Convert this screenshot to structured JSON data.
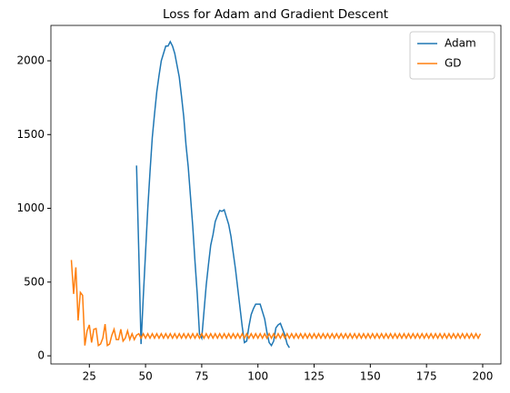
{
  "chart_data": {
    "type": "line",
    "title": "Loss for Adam and Gradient Descent",
    "xlim": [
      7.9,
      208.1
    ],
    "xticks": [
      25,
      50,
      75,
      100,
      125,
      150,
      175,
      200
    ],
    "ylim": [
      -55,
      2240
    ],
    "yticks": [
      0,
      500,
      1000,
      1500,
      2000
    ],
    "legend": "upper right",
    "series": [
      {
        "name": "Adam",
        "color": "#1f77b4",
        "x": [
          46,
          47,
          48,
          49,
          50,
          51,
          52,
          53,
          54,
          55,
          56,
          57,
          58,
          59,
          60,
          61,
          62,
          63,
          64,
          65,
          66,
          67,
          68,
          69,
          70,
          71,
          72,
          73,
          74,
          75,
          76,
          77,
          78,
          79,
          80,
          81,
          82,
          83,
          84,
          85,
          86,
          87,
          88,
          89,
          90,
          91,
          92,
          93,
          94,
          95,
          96,
          97,
          98,
          99,
          100,
          101,
          102,
          103,
          104,
          105,
          106,
          107,
          108,
          109,
          110,
          111,
          112,
          113,
          114
        ],
        "values": [
          1290,
          700,
          80,
          400,
          700,
          1000,
          1250,
          1480,
          1640,
          1790,
          1900,
          2000,
          2050,
          2100,
          2100,
          2130,
          2100,
          2050,
          1970,
          1890,
          1760,
          1620,
          1430,
          1280,
          1080,
          880,
          640,
          420,
          150,
          120,
          300,
          480,
          620,
          750,
          820,
          910,
          950,
          985,
          980,
          990,
          940,
          890,
          810,
          700,
          590,
          460,
          330,
          200,
          90,
          100,
          200,
          280,
          320,
          350,
          350,
          350,
          300,
          250,
          160,
          90,
          70,
          100,
          190,
          210,
          220,
          180,
          140,
          80,
          55
        ]
      },
      {
        "name": "GD",
        "color": "#ff7f0e",
        "x": [
          17,
          18,
          19,
          20,
          21,
          22,
          23,
          24,
          25,
          26,
          27,
          28,
          29,
          30,
          31,
          32,
          33,
          34,
          35,
          36,
          37,
          38,
          39,
          40,
          41,
          42,
          43,
          44,
          45,
          46,
          47,
          48,
          49,
          50,
          51,
          52,
          53,
          54,
          55,
          56,
          57,
          58,
          59,
          60,
          61,
          62,
          63,
          64,
          65,
          66,
          67,
          68,
          69,
          70,
          71,
          72,
          73,
          74,
          75,
          76,
          77,
          78,
          79,
          80,
          81,
          82,
          83,
          84,
          85,
          86,
          87,
          88,
          89,
          90,
          91,
          92,
          93,
          94,
          95,
          96,
          97,
          98,
          99,
          100,
          101,
          102,
          103,
          104,
          105,
          106,
          107,
          108,
          109,
          110,
          111,
          112,
          113,
          114,
          115,
          116,
          117,
          118,
          119,
          120,
          121,
          122,
          123,
          124,
          125,
          126,
          127,
          128,
          129,
          130,
          131,
          132,
          133,
          134,
          135,
          136,
          137,
          138,
          139,
          140,
          141,
          142,
          143,
          144,
          145,
          146,
          147,
          148,
          149,
          150,
          151,
          152,
          153,
          154,
          155,
          156,
          157,
          158,
          159,
          160,
          161,
          162,
          163,
          164,
          165,
          166,
          167,
          168,
          169,
          170,
          171,
          172,
          173,
          174,
          175,
          176,
          177,
          178,
          179,
          180,
          181,
          182,
          183,
          184,
          185,
          186,
          187,
          188,
          189,
          190,
          191,
          192,
          193,
          194,
          195,
          196,
          197,
          198,
          199
        ],
        "values": [
          650,
          420,
          600,
          240,
          430,
          410,
          70,
          170,
          210,
          90,
          180,
          185,
          70,
          80,
          120,
          215,
          70,
          80,
          140,
          180,
          110,
          110,
          180,
          100,
          120,
          170,
          110,
          150,
          110,
          140,
          150,
          120,
          150,
          120,
          150,
          120,
          150,
          120,
          150,
          120,
          150,
          120,
          150,
          120,
          150,
          120,
          150,
          120,
          150,
          120,
          150,
          120,
          150,
          120,
          150,
          120,
          150,
          120,
          150,
          120,
          150,
          120,
          150,
          120,
          150,
          120,
          150,
          120,
          150,
          120,
          150,
          120,
          150,
          120,
          150,
          120,
          150,
          120,
          150,
          120,
          150,
          120,
          150,
          120,
          150,
          120,
          150,
          120,
          150,
          120,
          150,
          120,
          150,
          120,
          150,
          120,
          150,
          120,
          150,
          120,
          150,
          120,
          150,
          120,
          150,
          120,
          150,
          120,
          150,
          120,
          150,
          120,
          150,
          120,
          150,
          120,
          150,
          120,
          150,
          120,
          150,
          120,
          150,
          120,
          150,
          120,
          150,
          120,
          150,
          120,
          150,
          120,
          150,
          120,
          150,
          120,
          150,
          120,
          150,
          120,
          150,
          120,
          150,
          120,
          150,
          120,
          150,
          120,
          150,
          120,
          150,
          120,
          150,
          120,
          150,
          120,
          150,
          120,
          150,
          120,
          150,
          120,
          150,
          120,
          150,
          120,
          150,
          120,
          150,
          120,
          150,
          120,
          150,
          120,
          150,
          120,
          150,
          120,
          150,
          120,
          150,
          120,
          150
        ]
      }
    ]
  }
}
